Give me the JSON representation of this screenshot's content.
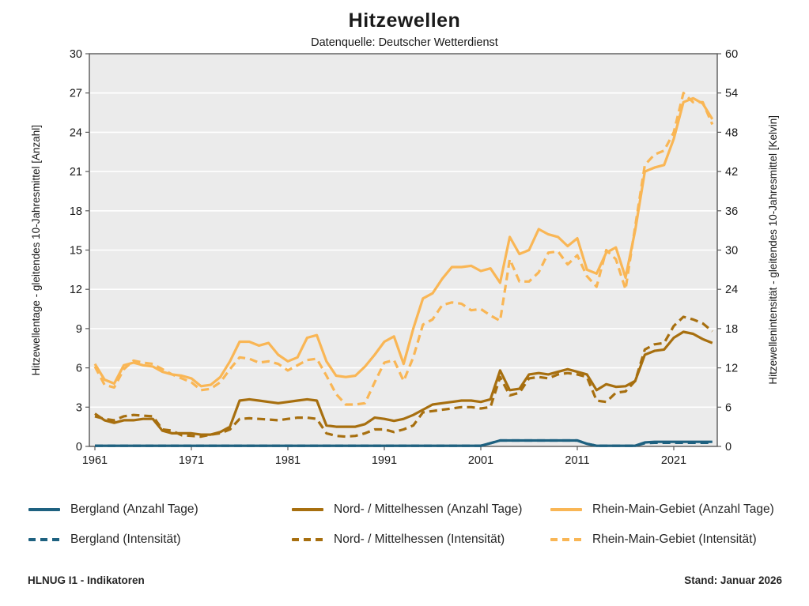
{
  "header": {
    "title": "Hitzewellen",
    "subtitle": "Datenquelle: Deutscher Wetterdienst"
  },
  "footer": {
    "left": "HLNUG I1 - Indikatoren",
    "right": "Stand: Januar 2026"
  },
  "colors": {
    "bergland": "#1e6180",
    "nordmittelhessen": "#a76f0f",
    "rheinmain": "#f9b655",
    "plot_bg": "#ebebeb",
    "grid": "#ffffff",
    "frame": "#595959",
    "text": "#1a1a1a"
  },
  "chart_data": {
    "type": "line",
    "title": "Hitzewellen",
    "subtitle": "Datenquelle: Deutscher Wetterdienst",
    "x_start": 1961,
    "x_end": 2025,
    "x_ticks": [
      1961,
      1971,
      1981,
      1991,
      2001,
      2011,
      2021
    ],
    "left_axis": {
      "label": "Hitzewellentage - gleitendes 10-Jahresmittel [Anzahl]",
      "min": 0,
      "max": 30,
      "step": 3
    },
    "right_axis": {
      "label": "Hitzewellenintensität - gleitendes 10-Jahresmittel [Kelvin]",
      "min": 0,
      "max": 60,
      "step": 6
    },
    "grid": true,
    "legend_position": "bottom",
    "series": [
      {
        "name": "Bergland (Anzahl Tage)",
        "axis": "left",
        "style": "solid",
        "color_key": "bergland",
        "values": [
          0.05,
          0.05,
          0.05,
          0.05,
          0.05,
          0.05,
          0.05,
          0.05,
          0.05,
          0.05,
          0.05,
          0.05,
          0.05,
          0.05,
          0.05,
          0.05,
          0.05,
          0.05,
          0.05,
          0.05,
          0.05,
          0.05,
          0.05,
          0.05,
          0.05,
          0.05,
          0.05,
          0.05,
          0.05,
          0.05,
          0.05,
          0.05,
          0.05,
          0.05,
          0.05,
          0.05,
          0.05,
          0.05,
          0.05,
          0.05,
          0.05,
          0.25,
          0.45,
          0.45,
          0.45,
          0.45,
          0.45,
          0.45,
          0.45,
          0.45,
          0.45,
          0.2,
          0.05,
          0.05,
          0.05,
          0.05,
          0.05,
          0.3,
          0.35,
          0.35,
          0.35,
          0.35,
          0.35,
          0.35,
          0.35
        ]
      },
      {
        "name": "Nord- / Mittelhessen (Anzahl Tage)",
        "axis": "left",
        "style": "solid",
        "color_key": "nordmittelhessen",
        "values": [
          2.5,
          2.0,
          1.8,
          2.0,
          2.0,
          2.1,
          2.1,
          1.2,
          1.0,
          1.0,
          1.0,
          0.9,
          0.9,
          1.1,
          1.5,
          3.5,
          3.6,
          3.5,
          3.4,
          3.3,
          3.4,
          3.5,
          3.6,
          3.5,
          1.6,
          1.5,
          1.5,
          1.5,
          1.7,
          2.2,
          2.1,
          1.95,
          2.1,
          2.4,
          2.8,
          3.2,
          3.3,
          3.4,
          3.5,
          3.5,
          3.4,
          3.6,
          5.8,
          4.3,
          4.4,
          5.5,
          5.6,
          5.5,
          5.7,
          5.9,
          5.7,
          5.5,
          4.3,
          4.75,
          4.55,
          4.6,
          5.0,
          7.0,
          7.3,
          7.4,
          8.3,
          8.75,
          8.6,
          8.2,
          7.9
        ]
      },
      {
        "name": "Rhein-Main-Gebiet (Anzahl Tage)",
        "axis": "left",
        "style": "solid",
        "color_key": "rheinmain",
        "values": [
          6.3,
          5.1,
          4.8,
          6.2,
          6.4,
          6.2,
          6.1,
          5.7,
          5.5,
          5.4,
          5.2,
          4.6,
          4.7,
          5.3,
          6.5,
          8.0,
          8.0,
          7.7,
          7.9,
          7.0,
          6.5,
          6.8,
          8.3,
          8.5,
          6.5,
          5.4,
          5.3,
          5.4,
          6.1,
          7.0,
          8.0,
          8.4,
          6.3,
          9.0,
          11.3,
          11.7,
          12.8,
          13.7,
          13.7,
          13.8,
          13.4,
          13.6,
          12.5,
          16.0,
          14.7,
          15.0,
          16.6,
          16.2,
          16.0,
          15.3,
          15.9,
          13.5,
          13.2,
          14.8,
          15.2,
          12.9,
          16.5,
          21.0,
          21.3,
          21.5,
          23.5,
          26.3,
          26.6,
          26.2,
          25.0
        ]
      },
      {
        "name": "Bergland (Intensität)",
        "axis": "right",
        "style": "dashed",
        "color_key": "bergland",
        "values": [
          0.1,
          0.1,
          0.1,
          0.1,
          0.1,
          0.1,
          0.1,
          0.1,
          0.1,
          0.1,
          0.1,
          0.1,
          0.1,
          0.1,
          0.1,
          0.1,
          0.1,
          0.1,
          0.1,
          0.1,
          0.1,
          0.1,
          0.1,
          0.1,
          0.1,
          0.1,
          0.1,
          0.1,
          0.1,
          0.1,
          0.1,
          0.1,
          0.1,
          0.1,
          0.1,
          0.1,
          0.1,
          0.1,
          0.1,
          0.1,
          0.1,
          0.5,
          0.9,
          0.9,
          0.9,
          0.9,
          0.9,
          0.9,
          0.9,
          0.9,
          0.9,
          0.4,
          0.1,
          0.1,
          0.1,
          0.1,
          0.1,
          0.5,
          0.55,
          0.55,
          0.55,
          0.55,
          0.55,
          0.55,
          0.55
        ]
      },
      {
        "name": "Nord- / Mittelhessen (Intensität)",
        "axis": "right",
        "style": "dashed",
        "color_key": "nordmittelhessen",
        "values": [
          4.6,
          4.2,
          4.0,
          4.6,
          4.8,
          4.7,
          4.6,
          2.6,
          2.4,
          1.7,
          1.6,
          1.5,
          1.8,
          2.0,
          2.6,
          4.2,
          4.3,
          4.2,
          4.1,
          4.0,
          4.2,
          4.4,
          4.4,
          4.2,
          2.0,
          1.6,
          1.5,
          1.6,
          2.0,
          2.6,
          2.6,
          2.2,
          2.6,
          3.2,
          5.2,
          5.4,
          5.6,
          5.8,
          6.0,
          6.0,
          5.8,
          6.0,
          10.6,
          7.8,
          8.2,
          10.4,
          10.6,
          10.4,
          11.0,
          11.2,
          11.0,
          10.6,
          7.0,
          6.8,
          8.2,
          8.4,
          10.0,
          14.8,
          15.6,
          15.8,
          18.4,
          19.8,
          19.4,
          18.8,
          17.6
        ]
      },
      {
        "name": "Rhein-Main-Gebiet (Intensität)",
        "axis": "right",
        "style": "dashed",
        "color_key": "rheinmain",
        "values": [
          12.2,
          9.4,
          9.0,
          11.8,
          13.1,
          12.8,
          12.6,
          11.8,
          11.0,
          10.4,
          9.8,
          8.6,
          8.8,
          9.8,
          11.8,
          13.6,
          13.4,
          12.8,
          13.0,
          12.6,
          11.6,
          12.4,
          13.2,
          13.4,
          10.8,
          8.0,
          6.4,
          6.4,
          6.6,
          9.8,
          12.8,
          13.2,
          10.0,
          13.6,
          18.6,
          19.4,
          21.6,
          22.0,
          21.8,
          20.8,
          21.0,
          20.0,
          19.2,
          28.6,
          25.2,
          25.2,
          26.6,
          29.6,
          29.8,
          27.8,
          29.2,
          26.0,
          24.4,
          30.0,
          28.6,
          24.0,
          33.6,
          43.0,
          44.6,
          45.2,
          48.0,
          54.0,
          52.6,
          52.6,
          49.2
        ]
      }
    ],
    "legend_order": [
      "Bergland (Anzahl Tage)",
      "Nord- / Mittelhessen (Anzahl Tage)",
      "Rhein-Main-Gebiet (Anzahl Tage)",
      "Bergland (Intensität)",
      "Nord- / Mittelhessen (Intensität)",
      "Rhein-Main-Gebiet (Intensität)"
    ]
  }
}
